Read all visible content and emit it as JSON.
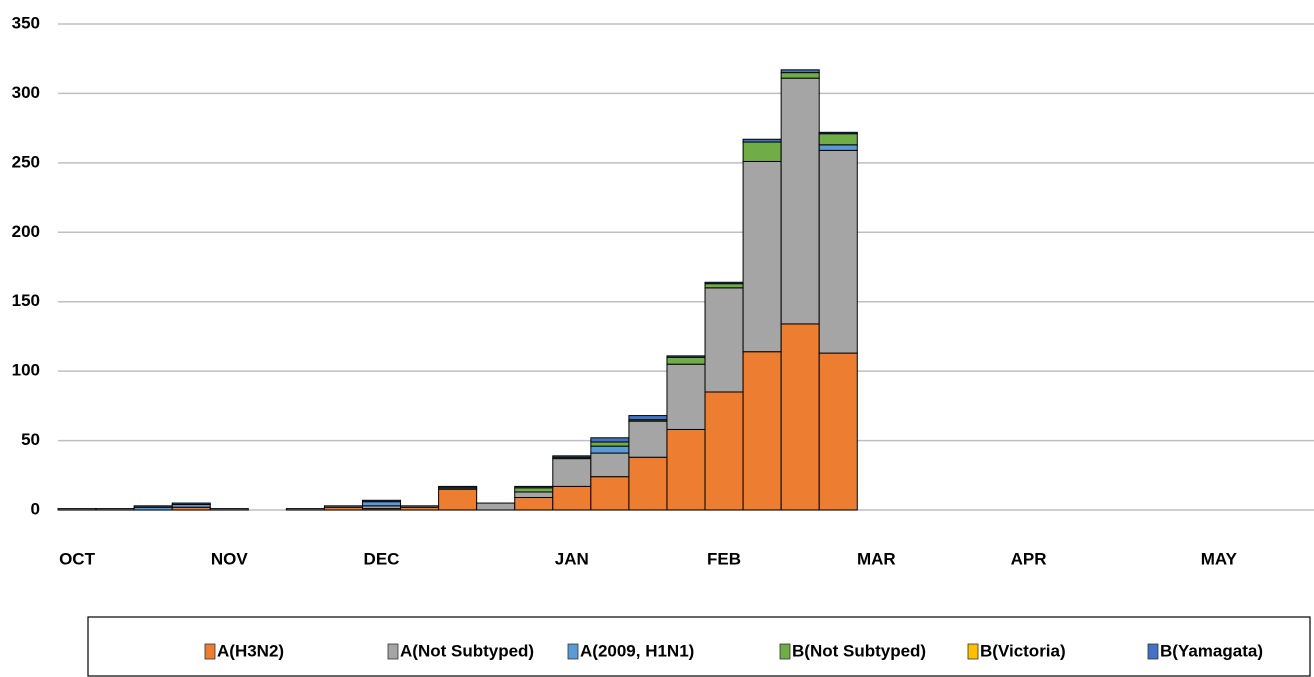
{
  "chart_data": {
    "type": "bar",
    "stacked": true,
    "categories": [
      "OCT",
      null,
      null,
      null,
      "NOV",
      null,
      null,
      null,
      "DEC",
      null,
      null,
      null,
      null,
      "JAN",
      null,
      null,
      null,
      "FEB",
      null,
      null,
      null,
      "MAR",
      null,
      null,
      null,
      "APR",
      null,
      null,
      null,
      null,
      "MAY",
      null,
      null
    ],
    "series": [
      {
        "name": "A(H3N2)",
        "color": "#ed7d31",
        "values": [
          0,
          0,
          0,
          2,
          0,
          0,
          0,
          2,
          1,
          2,
          15,
          0,
          9,
          17,
          24,
          38,
          58,
          85,
          114,
          134,
          113,
          0,
          0,
          0,
          0,
          0,
          0,
          0,
          0,
          0,
          0,
          0,
          0
        ]
      },
      {
        "name": "A(Not  Subtyped)",
        "color": "#a5a5a5",
        "values": [
          1,
          1,
          0,
          0,
          1,
          0,
          1,
          1,
          2,
          1,
          0,
          5,
          4,
          20,
          17,
          26,
          47,
          75,
          137,
          177,
          146,
          0,
          0,
          0,
          0,
          0,
          0,
          0,
          0,
          0,
          0,
          0,
          0
        ]
      },
      {
        "name": "A(2009, H1N1)",
        "color": "#5b9bd5",
        "values": [
          0,
          0,
          2,
          2,
          0,
          0,
          0,
          0,
          3,
          0,
          0,
          0,
          0,
          0,
          5,
          0,
          0,
          0,
          0,
          0,
          4,
          0,
          0,
          0,
          0,
          0,
          0,
          0,
          0,
          0,
          0,
          0,
          0
        ]
      },
      {
        "name": "B(Not Subtyped)",
        "color": "#70ad47",
        "values": [
          0,
          0,
          0,
          0,
          0,
          0,
          0,
          0,
          0,
          0,
          1,
          0,
          3,
          1,
          3,
          1,
          5,
          3,
          14,
          4,
          8,
          0,
          0,
          0,
          0,
          0,
          0,
          0,
          0,
          0,
          0,
          0,
          0
        ]
      },
      {
        "name": "B(Victoria)",
        "color": "#ffc000",
        "values": [
          0,
          0,
          0,
          0,
          0,
          0,
          0,
          0,
          0,
          0,
          0,
          0,
          0,
          0,
          0,
          0,
          0,
          0,
          0,
          0,
          0,
          0,
          0,
          0,
          0,
          0,
          0,
          0,
          0,
          0,
          0,
          0,
          0
        ]
      },
      {
        "name": "B(Yamagata)",
        "color": "#4472c4",
        "values": [
          0,
          0,
          1,
          1,
          0,
          0,
          0,
          0,
          1,
          0,
          1,
          0,
          1,
          1,
          3,
          3,
          1,
          1,
          2,
          2,
          1,
          0,
          0,
          0,
          0,
          0,
          0,
          0,
          0,
          0,
          0,
          0,
          0
        ]
      }
    ],
    "ylim": [
      0,
      350
    ],
    "yticks": [
      0,
      50,
      100,
      150,
      200,
      250,
      300,
      350
    ],
    "grid": true,
    "legend": "bottom"
  }
}
